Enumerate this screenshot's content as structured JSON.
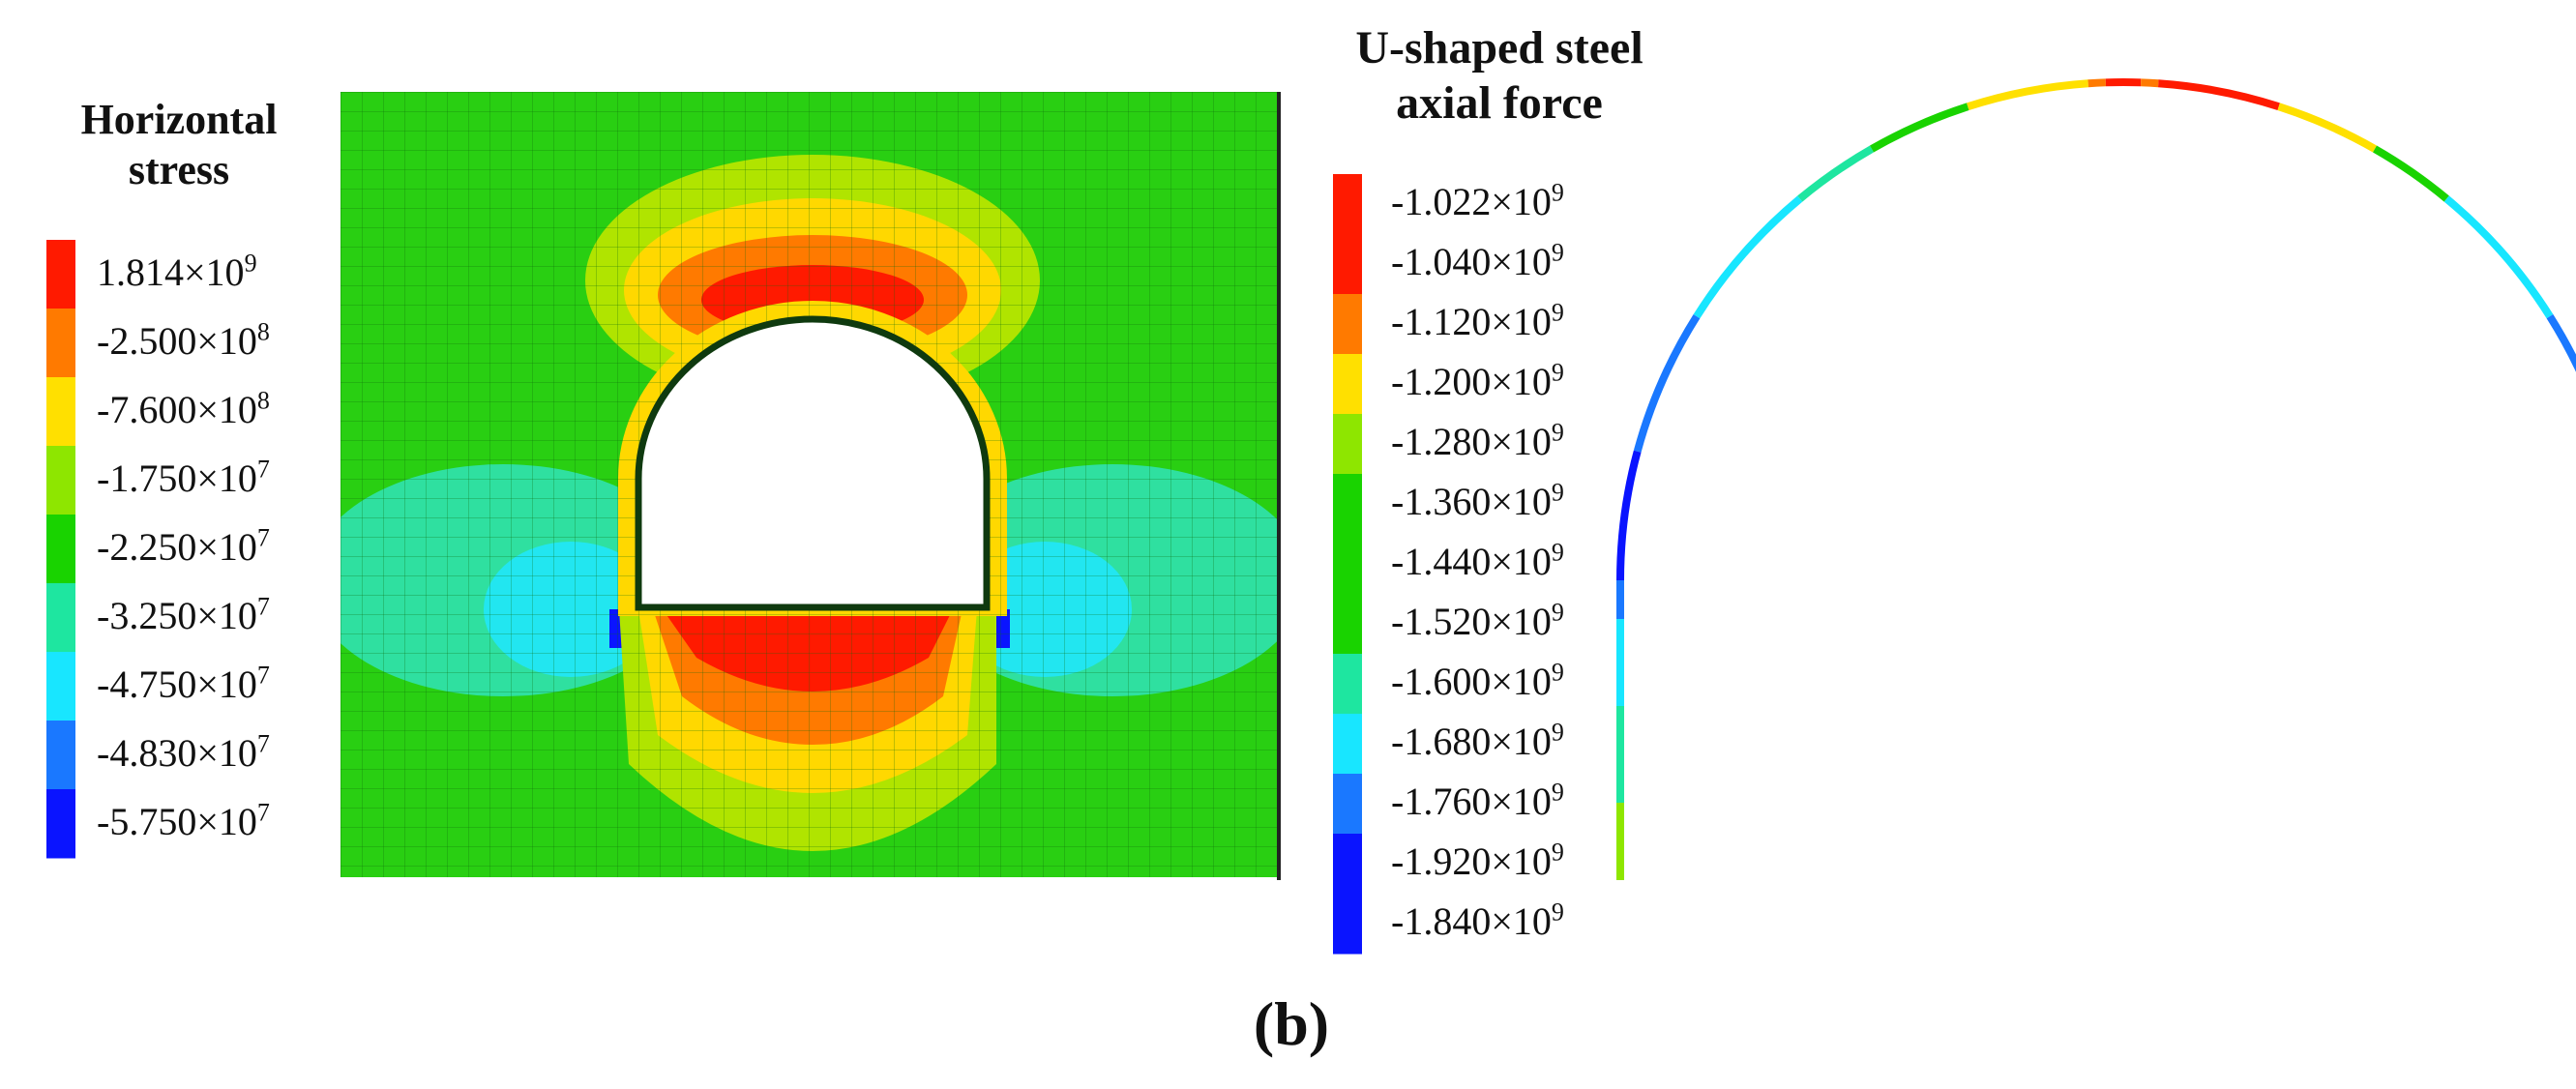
{
  "left_panel": {
    "title_lines": [
      "Horizontal",
      "stress"
    ],
    "legend": [
      {
        "label": "1.814×10",
        "exp": "9",
        "color": "#ff1a00"
      },
      {
        "label": "-2.500×10",
        "exp": "8",
        "color": "#ff7a00"
      },
      {
        "label": "-7.600×10",
        "exp": "8",
        "color": "#ffe000"
      },
      {
        "label": "-1.750×10",
        "exp": "7",
        "color": "#8ee600"
      },
      {
        "label": "-2.250×10",
        "exp": "7",
        "color": "#19d300"
      },
      {
        "label": "-3.250×10",
        "exp": "7",
        "color": "#1ee6a0"
      },
      {
        "label": "-4.750×10",
        "exp": "7",
        "color": "#18e6ff"
      },
      {
        "label": "-4.830×10",
        "exp": "7",
        "color": "#1a78ff"
      },
      {
        "label": "-5.750×10",
        "exp": "7",
        "color": "#0a14ff"
      }
    ]
  },
  "right_panel": {
    "title_lines": [
      "U-shaped steel",
      "axial force"
    ],
    "legend": [
      {
        "label": "-1.022×10",
        "exp": "9",
        "color": "#ff1a00"
      },
      {
        "label": "-1.040×10",
        "exp": "9",
        "color": "#ff1a00"
      },
      {
        "label": "-1.120×10",
        "exp": "9",
        "color": "#ff7a00"
      },
      {
        "label": "-1.200×10",
        "exp": "9",
        "color": "#ffe000"
      },
      {
        "label": "-1.280×10",
        "exp": "9",
        "color": "#8ee600"
      },
      {
        "label": "-1.360×10",
        "exp": "9",
        "color": "#19d300"
      },
      {
        "label": "-1.440×10",
        "exp": "9",
        "color": "#19d300"
      },
      {
        "label": "-1.520×10",
        "exp": "9",
        "color": "#19d300"
      },
      {
        "label": "-1.600×10",
        "exp": "9",
        "color": "#1ee6a0"
      },
      {
        "label": "-1.680×10",
        "exp": "9",
        "color": "#18e6ff"
      },
      {
        "label": "-1.760×10",
        "exp": "9",
        "color": "#1a78ff"
      },
      {
        "label": "-1.920×10",
        "exp": "9",
        "color": "#0a14ff"
      },
      {
        "label": "-1.840×10",
        "exp": "9",
        "color": "#0a14ff"
      }
    ]
  },
  "caption": "(b)"
}
